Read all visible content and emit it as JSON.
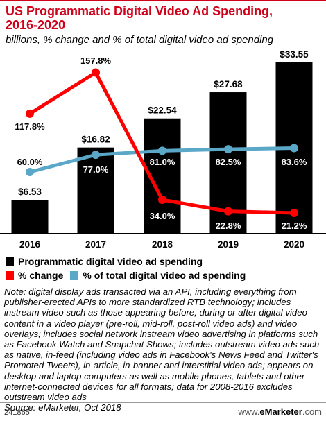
{
  "header": {
    "title_line1": "US Programmatic Digital Video Ad Spending,",
    "title_line2": "2016-2020",
    "subtitle": "billions, % change and % of total digital video ad spending"
  },
  "legend": {
    "item1": "Programmatic digital video ad spending",
    "item2": "% change",
    "item3": "% of total digital video ad spending"
  },
  "note": "Note: digital display ads transacted via an API, including everything from publisher-erected APIs to more standardized RTB technology; includes instream video such as those appearing before, during or after digital video content in a video player (pre-roll, mid-roll, post-roll video ads) and video overlays; includes social network instream video advertising in platforms such as Facebook Watch and Snapchat Shows; includes outstream video ads such as native, in-feed (including video ads in Facebook's News Feed and Twitter's Promoted Tweets), in-article, in-banner and interstitial video ads; appears on desktop and laptop computers as well as mobile phones, tablets and other internet-connected devices for all formats; data for 2008-2016 excludes outstream video ads",
  "source": "Source: eMarketer, Oct 2018",
  "footer": {
    "chart_id": "241865",
    "brand_prefix": "www.",
    "brand_name": "eMarketer",
    "brand_suffix": ".com"
  },
  "colors": {
    "bar": "#000000",
    "change_line": "#ff0000",
    "share_line": "#5aa7c8",
    "title": "#d0021b"
  },
  "chart_data": {
    "type": "bar",
    "categories": [
      "2016",
      "2017",
      "2018",
      "2019",
      "2020"
    ],
    "series": [
      {
        "name": "Programmatic digital video ad spending",
        "type": "bar",
        "values": [
          6.53,
          16.82,
          22.54,
          27.68,
          33.55
        ],
        "labels": [
          "$6.53",
          "$16.82",
          "$22.54",
          "$27.68",
          "$33.55"
        ]
      },
      {
        "name": "% change",
        "type": "line",
        "values": [
          117.8,
          157.8,
          34.0,
          22.8,
          21.2
        ],
        "labels": [
          "117.8%",
          "157.8%",
          "34.0%",
          "22.8%",
          "21.2%"
        ]
      },
      {
        "name": "% of total digital video ad spending",
        "type": "line",
        "values": [
          60.0,
          77.0,
          81.0,
          82.5,
          83.6
        ],
        "labels": [
          "60.0%",
          "77.0%",
          "81.0%",
          "82.5%",
          "83.6%"
        ]
      }
    ],
    "ylim_bars": [
      0,
      35
    ],
    "grid": false
  }
}
